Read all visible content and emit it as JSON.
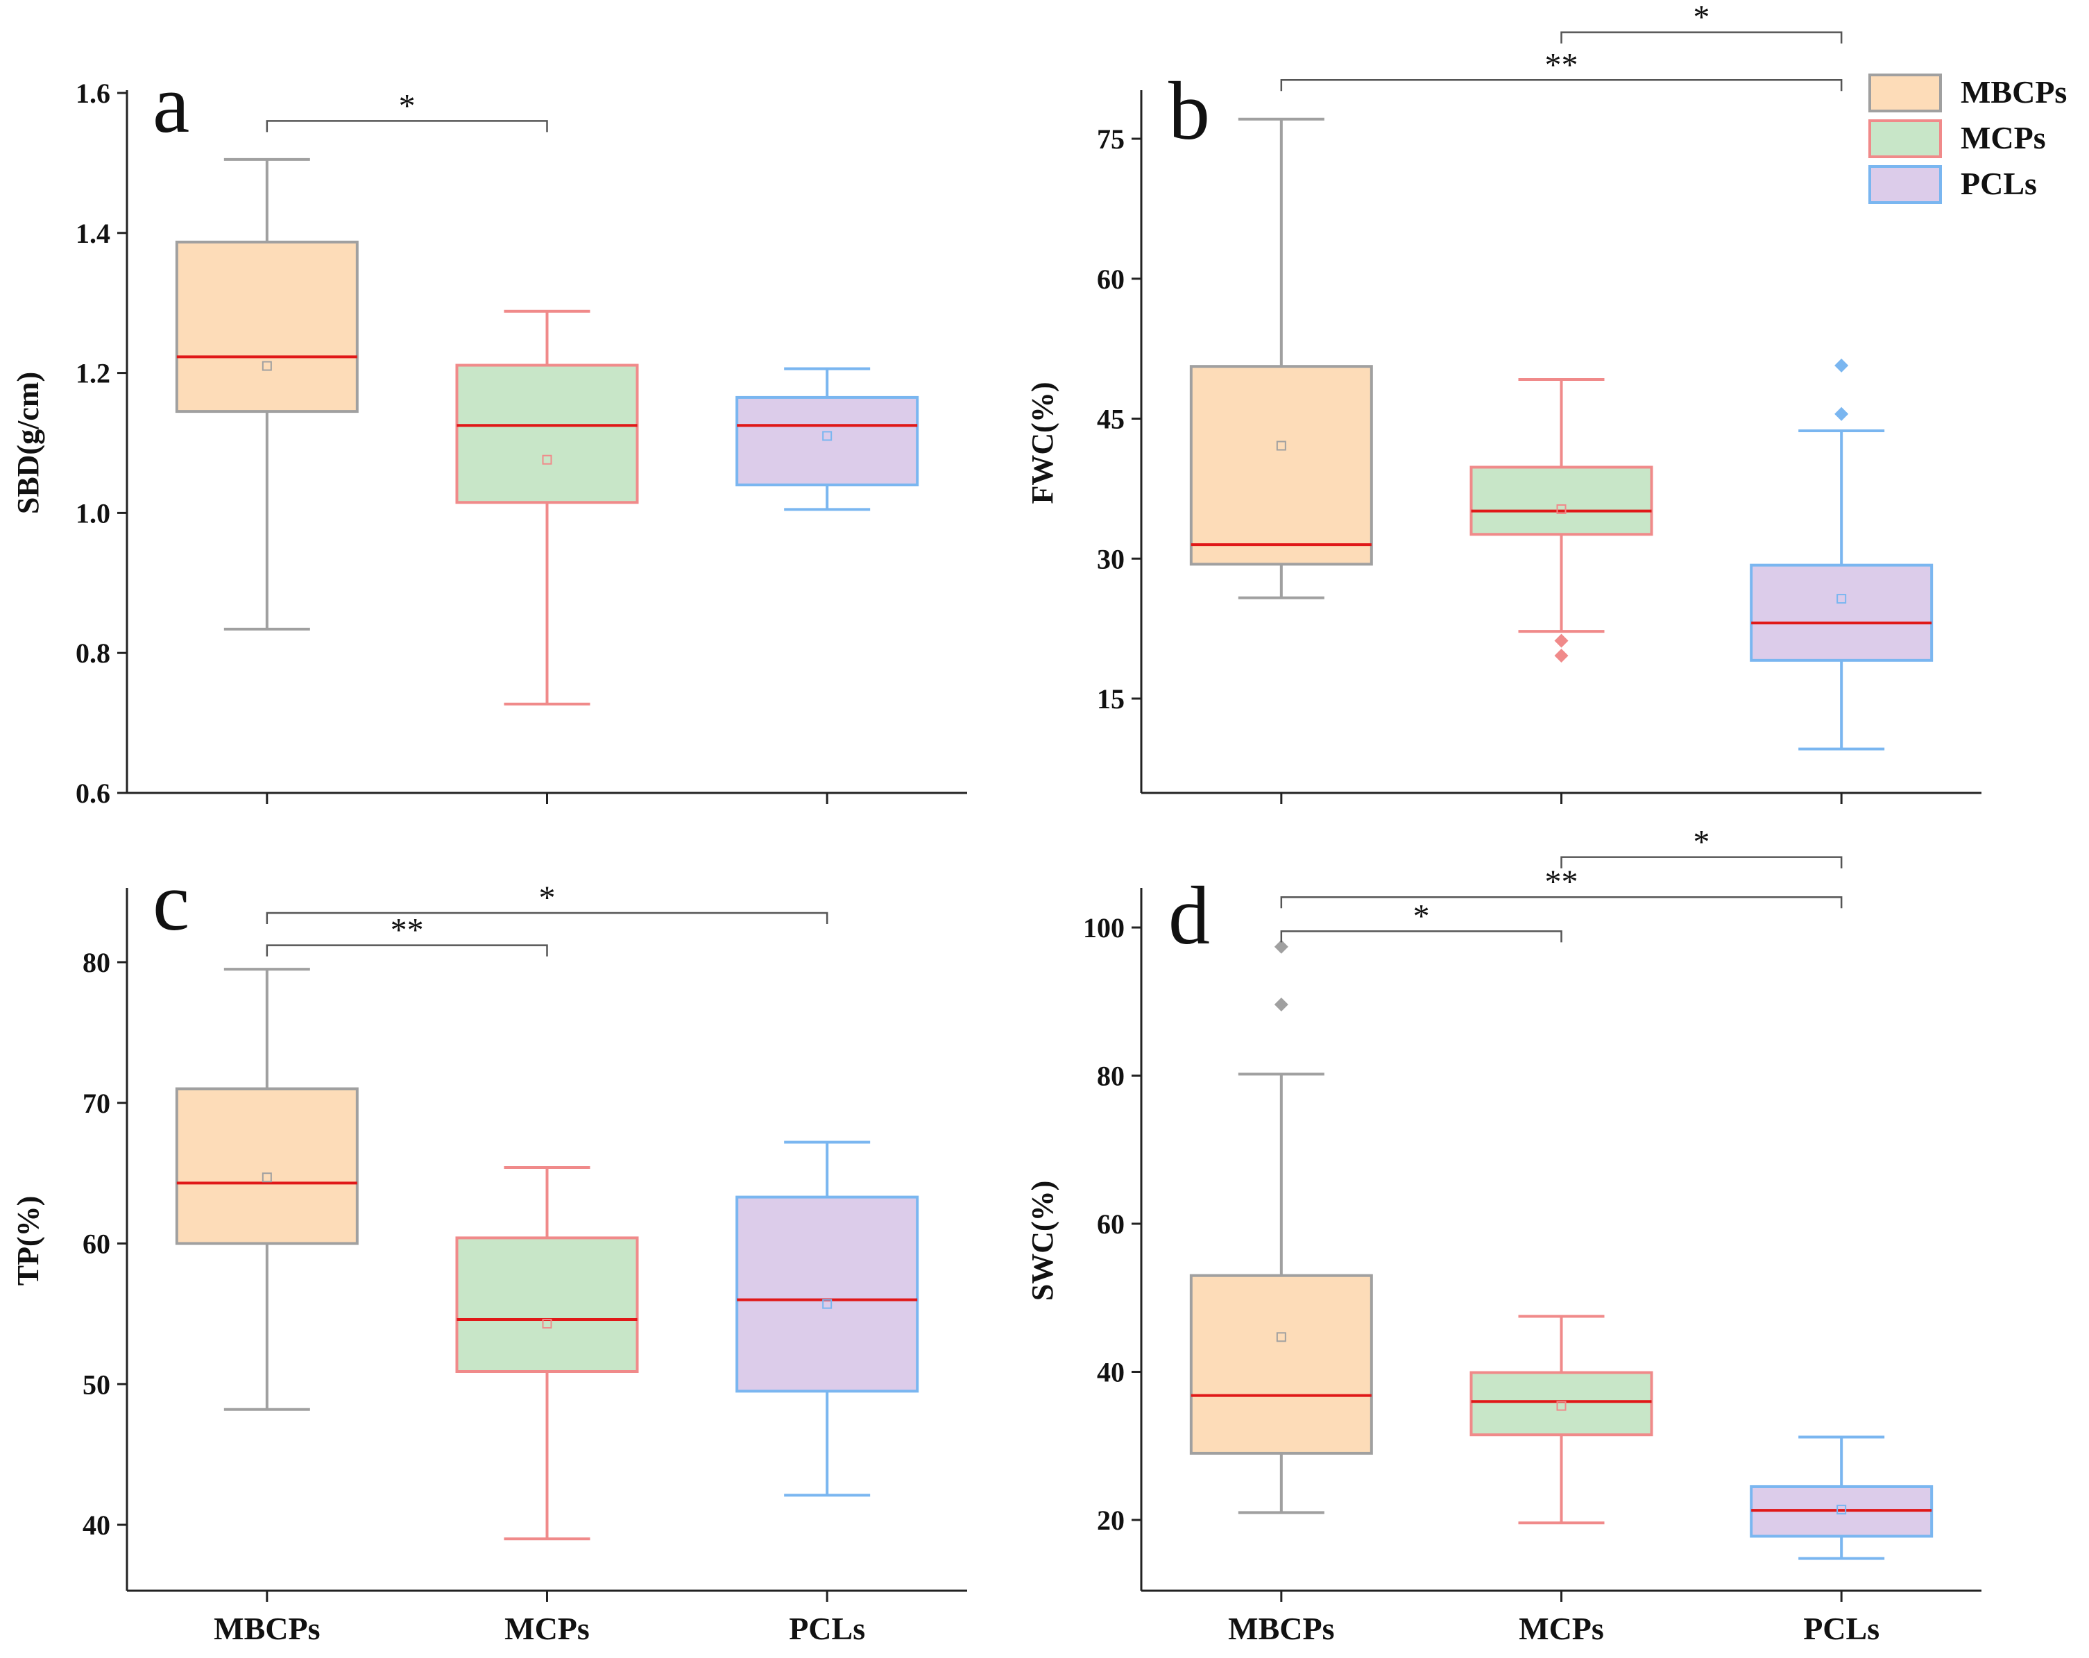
{
  "categories": [
    "MBCPs",
    "MCPs",
    "PCLs"
  ],
  "legend": [
    "MBCPs",
    "MCPs",
    "PCLs"
  ],
  "colors": {
    "MBCPs": {
      "fill": "#fddcb8",
      "stroke": "#a0a0a0"
    },
    "MCPs": {
      "fill": "#c8e6c8",
      "stroke": "#f08a8a"
    },
    "PCLs": {
      "fill": "#dcccea",
      "stroke": "#7ab6f0"
    },
    "median": "#e01818",
    "axis": "#222222",
    "bracket": "#555555"
  },
  "chart_data": [
    {
      "type": "box",
      "panel": "a",
      "ylabel": "SBD(g/cm)",
      "ylim": [
        0.6,
        1.6
      ],
      "yticks": [
        "0.6",
        "0.8",
        "1.0",
        "1.2",
        "1.4",
        "1.6"
      ],
      "categories": [
        "MBCPs",
        "MCPs",
        "PCLs"
      ],
      "boxes": [
        {
          "name": "MBCPs",
          "whisker_low": 0.834,
          "q1": 1.145,
          "median": 1.223,
          "q3": 1.387,
          "whisker_high": 1.505,
          "mean": 1.21,
          "outliers": []
        },
        {
          "name": "MCPs",
          "whisker_low": 0.727,
          "q1": 1.015,
          "median": 1.125,
          "q3": 1.211,
          "whisker_high": 1.288,
          "mean": 1.076,
          "outliers": []
        },
        {
          "name": "PCLs",
          "whisker_low": 1.005,
          "q1": 1.04,
          "median": 1.125,
          "q3": 1.165,
          "whisker_high": 1.206,
          "mean": 1.11,
          "outliers": []
        }
      ],
      "significance": [
        {
          "from": "MBCPs",
          "to": "MCPs",
          "label": "*",
          "level": 1.56
        }
      ]
    },
    {
      "type": "box",
      "panel": "b",
      "ylabel": "FWC(%)",
      "ylim": [
        5,
        80
      ],
      "yticks": [
        "15",
        "30",
        "45",
        "60",
        "75"
      ],
      "categories": [
        "MBCPs",
        "MCPs",
        "PCLs"
      ],
      "boxes": [
        {
          "name": "MBCPs",
          "whisker_low": 25.8,
          "q1": 29.4,
          "median": 31.5,
          "q3": 50.6,
          "whisker_high": 77.1,
          "mean": 42.1,
          "outliers": []
        },
        {
          "name": "MCPs",
          "whisker_low": 22.2,
          "q1": 32.6,
          "median": 35.1,
          "q3": 39.8,
          "whisker_high": 49.2,
          "mean": 35.3,
          "outliers": [
            21.2,
            19.6
          ]
        },
        {
          "name": "PCLs",
          "whisker_low": 9.6,
          "q1": 19.1,
          "median": 23.1,
          "q3": 29.3,
          "whisker_high": 43.7,
          "mean": 25.7,
          "outliers": [
            50.7,
            45.5
          ]
        }
      ],
      "significance": [
        {
          "from": "MBCPs",
          "to": "PCLs",
          "label": "**",
          "level": 81.3
        },
        {
          "from": "MCPs",
          "to": "PCLs",
          "label": "*",
          "level": 86.4
        }
      ]
    },
    {
      "type": "box",
      "panel": "c",
      "ylabel": "TP(%)",
      "ylim": [
        35,
        85
      ],
      "yticks": [
        "40",
        "50",
        "60",
        "70",
        "80"
      ],
      "categories": [
        "MBCPs",
        "MCPs",
        "PCLs"
      ],
      "boxes": [
        {
          "name": "MBCPs",
          "whisker_low": 48.2,
          "q1": 60.0,
          "median": 64.3,
          "q3": 71.0,
          "whisker_high": 79.5,
          "mean": 64.7,
          "outliers": []
        },
        {
          "name": "MCPs",
          "whisker_low": 39.0,
          "q1": 50.9,
          "median": 54.6,
          "q3": 60.4,
          "whisker_high": 65.4,
          "mean": 54.3,
          "outliers": []
        },
        {
          "name": "PCLs",
          "whisker_low": 42.1,
          "q1": 49.5,
          "median": 56.0,
          "q3": 63.3,
          "whisker_high": 67.2,
          "mean": 55.7,
          "outliers": []
        }
      ],
      "significance": [
        {
          "from": "MBCPs",
          "to": "MCPs",
          "label": "**",
          "level": 81.2
        },
        {
          "from": "MBCPs",
          "to": "PCLs",
          "label": "*",
          "level": 83.5
        }
      ]
    },
    {
      "type": "box",
      "panel": "d",
      "ylabel": "SWC(%)",
      "ylim": [
        10,
        105
      ],
      "yticks": [
        "20",
        "40",
        "60",
        "80",
        "100"
      ],
      "categories": [
        "MBCPs",
        "MCPs",
        "PCLs"
      ],
      "boxes": [
        {
          "name": "MBCPs",
          "whisker_low": 21.0,
          "q1": 29.0,
          "median": 36.8,
          "q3": 53.0,
          "whisker_high": 80.2,
          "mean": 44.7,
          "outliers": [
            97.4,
            89.6
          ]
        },
        {
          "name": "MCPs",
          "whisker_low": 19.6,
          "q1": 31.5,
          "median": 36.0,
          "q3": 39.9,
          "whisker_high": 47.5,
          "mean": 35.4,
          "outliers": []
        },
        {
          "name": "PCLs",
          "whisker_low": 14.8,
          "q1": 17.8,
          "median": 21.3,
          "q3": 24.5,
          "whisker_high": 31.2,
          "mean": 21.4,
          "outliers": []
        }
      ],
      "significance": [
        {
          "from": "MBCPs",
          "to": "MCPs",
          "label": "*",
          "level": 99.5
        },
        {
          "from": "MBCPs",
          "to": "PCLs",
          "label": "**",
          "level": 104.1
        },
        {
          "from": "MCPs",
          "to": "PCLs",
          "label": "*",
          "level": 109.5
        }
      ]
    }
  ]
}
